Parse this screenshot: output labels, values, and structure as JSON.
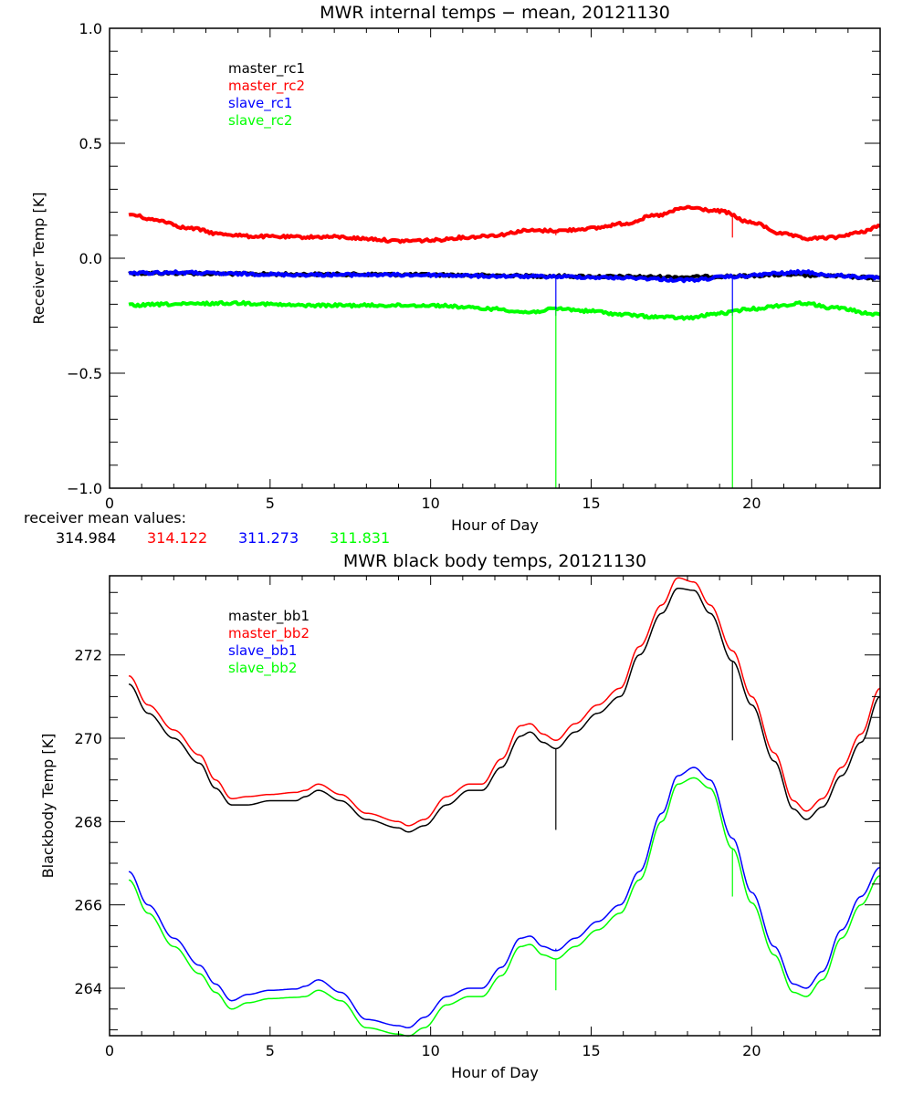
{
  "chart_data": [
    {
      "type": "line",
      "title": "MWR internal temps − mean, 20121130",
      "xlabel": "Hour of Day",
      "ylabel": "Receiver Temp [K]",
      "xlim": [
        0,
        24
      ],
      "ylim": [
        -1.0,
        1.0
      ],
      "xticks": [
        0,
        5,
        10,
        15,
        20
      ],
      "xtick_labels": [
        "0",
        "5",
        "10",
        "15",
        "20"
      ],
      "yticks": [
        -1.0,
        -0.5,
        0.0,
        0.5,
        1.0
      ],
      "ytick_labels": [
        "−1.0",
        "−0.5",
        "0.0",
        "0.5",
        "1.0"
      ],
      "grid": false,
      "legend_position": "top-left",
      "series": [
        {
          "name": "master_rc1",
          "color": "#000000",
          "x": [
            0.6,
            2,
            4,
            6,
            8,
            10,
            12,
            14,
            16,
            18,
            19.4,
            21,
            22,
            24
          ],
          "y": [
            -0.065,
            -0.065,
            -0.068,
            -0.07,
            -0.07,
            -0.072,
            -0.075,
            -0.078,
            -0.08,
            -0.082,
            -0.078,
            -0.072,
            -0.075,
            -0.085
          ],
          "spikes": [
            {
              "x": 13.9,
              "to": -0.08
            },
            {
              "x": 19.4,
              "to": -0.08
            }
          ]
        },
        {
          "name": "master_rc2",
          "color": "#ff0000",
          "x": [
            0.6,
            1.5,
            2.5,
            3.5,
            4.5,
            6,
            7,
            8,
            9,
            10,
            11,
            12,
            13,
            14,
            15,
            16,
            17,
            18,
            19,
            20,
            21,
            21.7,
            22.5,
            23.3,
            24
          ],
          "y": [
            0.19,
            0.165,
            0.13,
            0.105,
            0.095,
            0.092,
            0.093,
            0.085,
            0.075,
            0.078,
            0.09,
            0.1,
            0.12,
            0.12,
            0.13,
            0.15,
            0.185,
            0.22,
            0.205,
            0.155,
            0.105,
            0.085,
            0.09,
            0.11,
            0.14
          ],
          "spikes": [
            {
              "x": 13.9,
              "to": 0.1
            },
            {
              "x": 19.4,
              "to": 0.09
            }
          ]
        },
        {
          "name": "slave_rc1",
          "color": "#0000ff",
          "x": [
            0.6,
            2,
            4,
            6,
            8,
            10,
            12,
            14,
            16,
            18,
            19.4,
            21,
            21.6,
            22.5,
            24
          ],
          "y": [
            -0.065,
            -0.062,
            -0.068,
            -0.072,
            -0.072,
            -0.073,
            -0.078,
            -0.08,
            -0.085,
            -0.095,
            -0.08,
            -0.065,
            -0.06,
            -0.075,
            -0.085
          ],
          "spikes": [
            {
              "x": 13.9,
              "to": -0.25
            },
            {
              "x": 19.4,
              "to": -0.25
            }
          ]
        },
        {
          "name": "slave_rc2",
          "color": "#00ff00",
          "x": [
            0.6,
            2,
            4,
            6,
            8,
            10,
            12,
            13,
            14,
            15,
            16,
            17,
            18,
            19,
            20,
            21,
            21.6,
            22.5,
            24
          ],
          "y": [
            -0.205,
            -0.2,
            -0.195,
            -0.205,
            -0.205,
            -0.205,
            -0.22,
            -0.235,
            -0.22,
            -0.23,
            -0.245,
            -0.255,
            -0.26,
            -0.24,
            -0.22,
            -0.205,
            -0.195,
            -0.215,
            -0.245
          ],
          "spikes": [
            {
              "x": 13.9,
              "to": -1.0
            },
            {
              "x": 19.4,
              "to": -1.0
            }
          ]
        }
      ],
      "annotation": {
        "label": "receiver mean values:",
        "values": [
          {
            "text": "314.984",
            "color": "#000000"
          },
          {
            "text": "314.122",
            "color": "#ff0000"
          },
          {
            "text": "311.273",
            "color": "#0000ff"
          },
          {
            "text": "311.831",
            "color": "#00ff00"
          }
        ]
      }
    },
    {
      "type": "line",
      "title": "MWR black body temps, 20121130",
      "xlabel": "Hour of Day",
      "ylabel": "Blackbody Temp [K]",
      "xlim": [
        0,
        24
      ],
      "ylim": [
        262.86,
        273.9
      ],
      "xticks": [
        0,
        5,
        10,
        15,
        20
      ],
      "xtick_labels": [
        "0",
        "5",
        "10",
        "15",
        "20"
      ],
      "yticks": [
        264,
        266,
        268,
        270,
        272
      ],
      "ytick_labels": [
        "264",
        "266",
        "268",
        "270",
        "272"
      ],
      "grid": false,
      "legend_position": "top-left",
      "series": [
        {
          "name": "master_bb1",
          "color": "#000000",
          "x": [
            0.6,
            1.2,
            2,
            2.8,
            3.3,
            3.8,
            4.3,
            5,
            5.8,
            6.1,
            6.5,
            7.2,
            8,
            9,
            9.3,
            9.8,
            10.5,
            11.2,
            11.6,
            12.2,
            12.8,
            13.1,
            13.5,
            13.9,
            14.5,
            15.2,
            15.9,
            16.5,
            17.2,
            17.7,
            18.2,
            18.7,
            19.4,
            20,
            20.7,
            21.3,
            21.7,
            22.2,
            22.8,
            23.4,
            24
          ],
          "y": [
            271.3,
            270.6,
            270.0,
            269.4,
            268.8,
            268.4,
            268.4,
            268.5,
            268.5,
            268.6,
            268.75,
            268.5,
            268.05,
            267.85,
            267.75,
            267.9,
            268.4,
            268.75,
            268.75,
            269.3,
            270.05,
            270.15,
            269.9,
            269.75,
            270.15,
            270.6,
            271.0,
            272.0,
            273.0,
            273.6,
            273.55,
            273.0,
            271.85,
            270.8,
            269.45,
            268.3,
            268.05,
            268.35,
            269.1,
            269.9,
            271.0
          ],
          "spikes": [
            {
              "x": 13.9,
              "to": 267.8
            },
            {
              "x": 19.4,
              "to": 269.95
            }
          ]
        },
        {
          "name": "master_bb2",
          "color": "#ff0000",
          "x": [
            0.6,
            1.2,
            2,
            2.8,
            3.3,
            3.8,
            4.3,
            5,
            5.8,
            6.1,
            6.5,
            7.2,
            8,
            9,
            9.3,
            9.8,
            10.5,
            11.2,
            11.6,
            12.2,
            12.8,
            13.1,
            13.5,
            13.9,
            14.5,
            15.2,
            15.9,
            16.5,
            17.2,
            17.7,
            18.2,
            18.7,
            19.4,
            20,
            20.7,
            21.3,
            21.7,
            22.2,
            22.8,
            23.4,
            24
          ],
          "y": [
            271.5,
            270.8,
            270.2,
            269.6,
            269.0,
            268.55,
            268.6,
            268.65,
            268.7,
            268.75,
            268.9,
            268.65,
            268.2,
            268.0,
            267.9,
            268.05,
            268.6,
            268.9,
            268.9,
            269.5,
            270.3,
            270.35,
            270.1,
            269.95,
            270.35,
            270.8,
            271.2,
            272.2,
            273.2,
            273.85,
            273.75,
            273.2,
            272.1,
            271.0,
            269.65,
            268.5,
            268.25,
            268.55,
            269.3,
            270.1,
            271.2
          ],
          "spikes": []
        },
        {
          "name": "slave_bb1",
          "color": "#0000ff",
          "x": [
            0.6,
            1.2,
            2,
            2.8,
            3.3,
            3.8,
            4.3,
            5,
            5.8,
            6.1,
            6.5,
            7.2,
            8,
            9,
            9.3,
            9.8,
            10.5,
            11.2,
            11.6,
            12.2,
            12.8,
            13.1,
            13.5,
            13.9,
            14.5,
            15.2,
            15.9,
            16.5,
            17.2,
            17.7,
            18.2,
            18.7,
            19.4,
            20,
            20.7,
            21.3,
            21.7,
            22.2,
            22.8,
            23.4,
            24
          ],
          "y": [
            266.8,
            266.0,
            265.2,
            264.55,
            264.1,
            263.7,
            263.85,
            263.95,
            263.98,
            264.05,
            264.2,
            263.9,
            263.25,
            263.1,
            263.05,
            263.3,
            263.8,
            264.0,
            264.0,
            264.5,
            265.2,
            265.25,
            265.0,
            264.9,
            265.2,
            265.6,
            266.0,
            266.8,
            268.2,
            269.1,
            269.3,
            269.0,
            267.6,
            266.3,
            265.0,
            264.1,
            264.0,
            264.4,
            265.4,
            266.2,
            266.9
          ],
          "spikes": [
            {
              "x": 13.9,
              "to": 264.95
            }
          ]
        },
        {
          "name": "slave_bb2",
          "color": "#00ff00",
          "x": [
            0.6,
            1.2,
            2,
            2.8,
            3.3,
            3.8,
            4.3,
            5,
            5.8,
            6.1,
            6.5,
            7.2,
            8,
            9,
            9.3,
            9.8,
            10.5,
            11.2,
            11.6,
            12.2,
            12.8,
            13.1,
            13.5,
            13.9,
            14.5,
            15.2,
            15.9,
            16.5,
            17.2,
            17.7,
            18.2,
            18.7,
            19.4,
            20,
            20.7,
            21.3,
            21.7,
            22.2,
            22.8,
            23.4,
            24
          ],
          "y": [
            266.6,
            265.8,
            265.0,
            264.35,
            263.9,
            263.5,
            263.65,
            263.75,
            263.78,
            263.8,
            263.95,
            263.7,
            263.05,
            262.9,
            262.85,
            263.05,
            263.6,
            263.8,
            263.8,
            264.3,
            265.0,
            265.05,
            264.8,
            264.7,
            265.0,
            265.4,
            265.8,
            266.6,
            268.0,
            268.9,
            269.05,
            268.8,
            267.35,
            266.05,
            264.8,
            263.9,
            263.8,
            264.2,
            265.2,
            266.0,
            266.7
          ],
          "spikes": [
            {
              "x": 13.9,
              "to": 263.95
            },
            {
              "x": 19.4,
              "to": 266.2
            }
          ]
        }
      ]
    }
  ]
}
